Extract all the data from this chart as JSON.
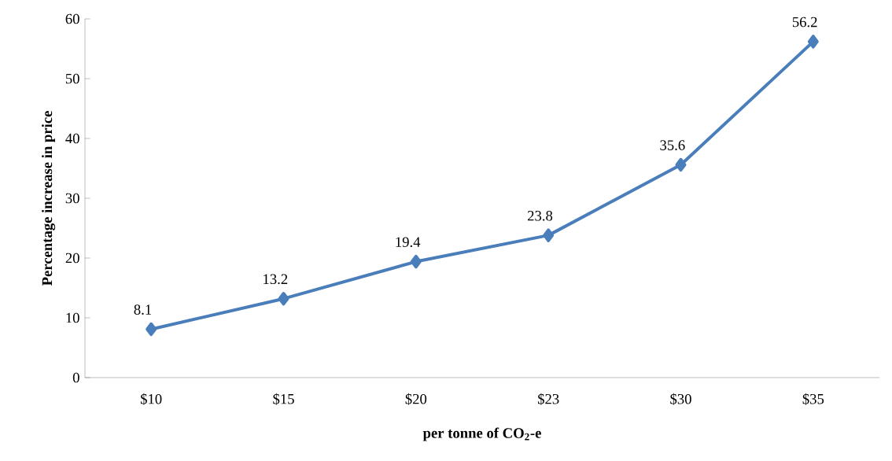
{
  "chart_data": {
    "type": "line",
    "xlabel": "per tonne of CO$_{2}$-e",
    "ylabel": "Percentage increase in price",
    "categories": [
      "$10",
      "$15",
      "$20",
      "$23",
      "$30",
      "$35"
    ],
    "values": [
      8.1,
      13.2,
      19.4,
      23.8,
      35.6,
      56.2
    ],
    "color": "#4a7ebb",
    "marker": "diamond",
    "line_style": "solid",
    "data_labels": true,
    "ylim": [
      0,
      60
    ],
    "yticks": [
      0,
      10,
      20,
      30,
      40,
      50,
      60
    ],
    "grid": false
  }
}
